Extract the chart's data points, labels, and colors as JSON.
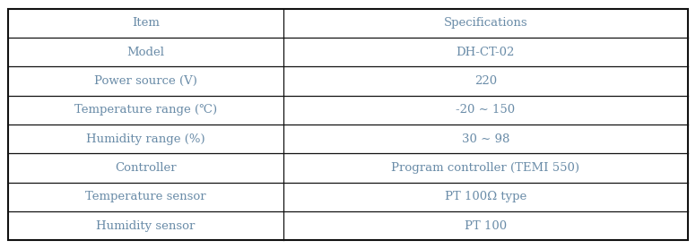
{
  "rows": [
    [
      "Item",
      "Specifications"
    ],
    [
      "Model",
      "DH-CT-02"
    ],
    [
      "Power source (V)",
      "220"
    ],
    [
      "Temperature range (℃)",
      "-20 ∼ 150"
    ],
    [
      "Humidity range (%)",
      "30 ∼ 98"
    ],
    [
      "Controller",
      "Program controller (TEMI 550)"
    ],
    [
      "Temperature sensor",
      "PT 100Ω type"
    ],
    [
      "Humidity sensor",
      "PT 100"
    ]
  ],
  "col_split": 0.405,
  "bg_color": "#ffffff",
  "border_color": "#111111",
  "text_color": "#6a8ca8",
  "font_size": 9.5,
  "fig_width": 7.76,
  "fig_height": 2.78,
  "dpi": 100
}
